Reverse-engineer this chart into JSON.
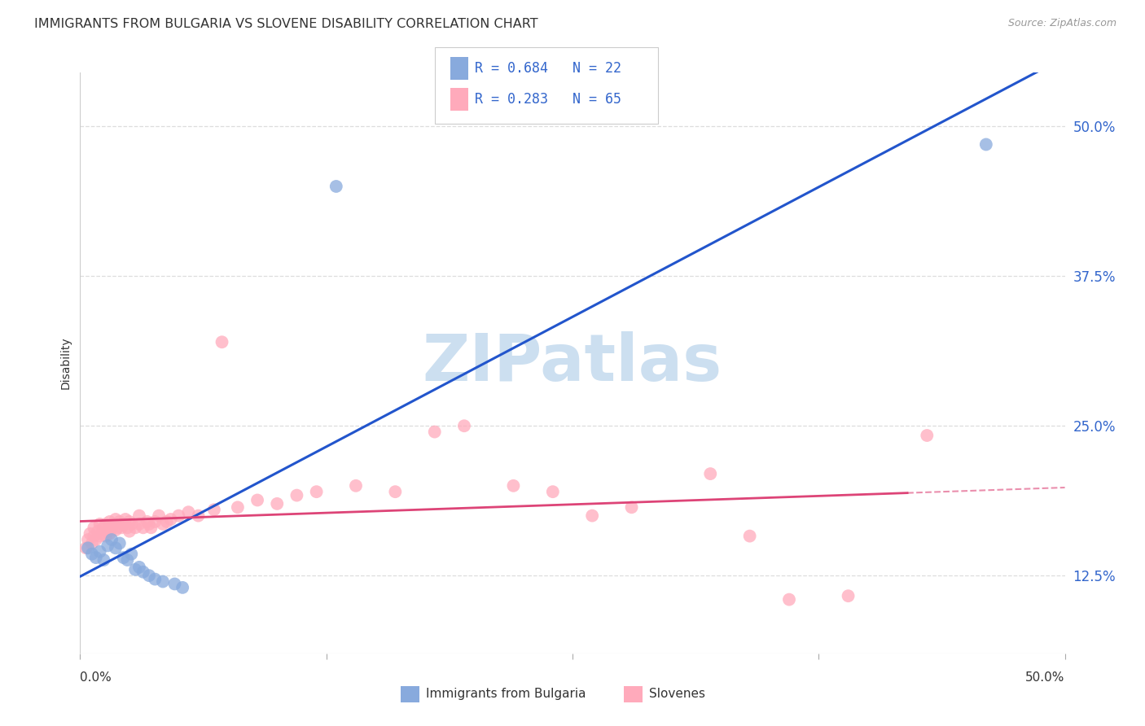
{
  "title": "IMMIGRANTS FROM BULGARIA VS SLOVENE DISABILITY CORRELATION CHART",
  "source": "Source: ZipAtlas.com",
  "ylabel": "Disability",
  "xmin": 0.0,
  "xmax": 0.5,
  "ymin": 0.06,
  "ymax": 0.545,
  "yticks": [
    0.125,
    0.25,
    0.375,
    0.5
  ],
  "ytick_labels": [
    "12.5%",
    "25.0%",
    "37.5%",
    "50.0%"
  ],
  "xtick_vals": [
    0.0,
    0.125,
    0.25,
    0.375,
    0.5
  ],
  "bg_color": "#ffffff",
  "grid_color": "#dddddd",
  "watermark_text": "ZIPatlas",
  "watermark_color": "#ccdff0",
  "legend_R1": "R = 0.684",
  "legend_N1": "N = 22",
  "legend_R2": "R = 0.283",
  "legend_N2": "N = 65",
  "blue_color": "#88aadd",
  "pink_color": "#ffaabb",
  "blue_line_color": "#2255cc",
  "pink_line_color": "#dd4477",
  "tick_label_color": "#3366cc",
  "text_color": "#333333",
  "source_color": "#999999",
  "bottom_label1": "Immigrants from Bulgaria",
  "bottom_label2": "Slovenes",
  "blue_pts": [
    [
      0.004,
      0.148
    ],
    [
      0.006,
      0.143
    ],
    [
      0.008,
      0.14
    ],
    [
      0.01,
      0.145
    ],
    [
      0.012,
      0.138
    ],
    [
      0.014,
      0.15
    ],
    [
      0.016,
      0.155
    ],
    [
      0.018,
      0.148
    ],
    [
      0.02,
      0.152
    ],
    [
      0.022,
      0.14
    ],
    [
      0.024,
      0.138
    ],
    [
      0.026,
      0.143
    ],
    [
      0.028,
      0.13
    ],
    [
      0.03,
      0.132
    ],
    [
      0.032,
      0.128
    ],
    [
      0.035,
      0.125
    ],
    [
      0.038,
      0.122
    ],
    [
      0.042,
      0.12
    ],
    [
      0.048,
      0.118
    ],
    [
      0.052,
      0.115
    ],
    [
      0.13,
      0.45
    ],
    [
      0.46,
      0.485
    ]
  ],
  "pink_pts": [
    [
      0.003,
      0.148
    ],
    [
      0.004,
      0.155
    ],
    [
      0.005,
      0.16
    ],
    [
      0.006,
      0.152
    ],
    [
      0.007,
      0.158
    ],
    [
      0.007,
      0.165
    ],
    [
      0.008,
      0.155
    ],
    [
      0.009,
      0.162
    ],
    [
      0.01,
      0.158
    ],
    [
      0.01,
      0.168
    ],
    [
      0.011,
      0.16
    ],
    [
      0.012,
      0.165
    ],
    [
      0.013,
      0.168
    ],
    [
      0.013,
      0.158
    ],
    [
      0.014,
      0.162
    ],
    [
      0.015,
      0.17
    ],
    [
      0.015,
      0.16
    ],
    [
      0.016,
      0.165
    ],
    [
      0.017,
      0.168
    ],
    [
      0.018,
      0.163
    ],
    [
      0.018,
      0.172
    ],
    [
      0.019,
      0.165
    ],
    [
      0.02,
      0.17
    ],
    [
      0.021,
      0.165
    ],
    [
      0.022,
      0.168
    ],
    [
      0.023,
      0.172
    ],
    [
      0.024,
      0.165
    ],
    [
      0.025,
      0.17
    ],
    [
      0.025,
      0.162
    ],
    [
      0.026,
      0.168
    ],
    [
      0.028,
      0.165
    ],
    [
      0.03,
      0.168
    ],
    [
      0.03,
      0.175
    ],
    [
      0.032,
      0.165
    ],
    [
      0.034,
      0.17
    ],
    [
      0.035,
      0.168
    ],
    [
      0.036,
      0.165
    ],
    [
      0.038,
      0.17
    ],
    [
      0.04,
      0.175
    ],
    [
      0.042,
      0.168
    ],
    [
      0.044,
      0.17
    ],
    [
      0.046,
      0.172
    ],
    [
      0.05,
      0.175
    ],
    [
      0.055,
      0.178
    ],
    [
      0.06,
      0.175
    ],
    [
      0.068,
      0.18
    ],
    [
      0.072,
      0.32
    ],
    [
      0.08,
      0.182
    ],
    [
      0.09,
      0.188
    ],
    [
      0.1,
      0.185
    ],
    [
      0.11,
      0.192
    ],
    [
      0.12,
      0.195
    ],
    [
      0.14,
      0.2
    ],
    [
      0.16,
      0.195
    ],
    [
      0.18,
      0.245
    ],
    [
      0.195,
      0.25
    ],
    [
      0.22,
      0.2
    ],
    [
      0.24,
      0.195
    ],
    [
      0.26,
      0.175
    ],
    [
      0.28,
      0.182
    ],
    [
      0.32,
      0.21
    ],
    [
      0.34,
      0.158
    ],
    [
      0.36,
      0.105
    ],
    [
      0.39,
      0.108
    ],
    [
      0.43,
      0.242
    ]
  ]
}
